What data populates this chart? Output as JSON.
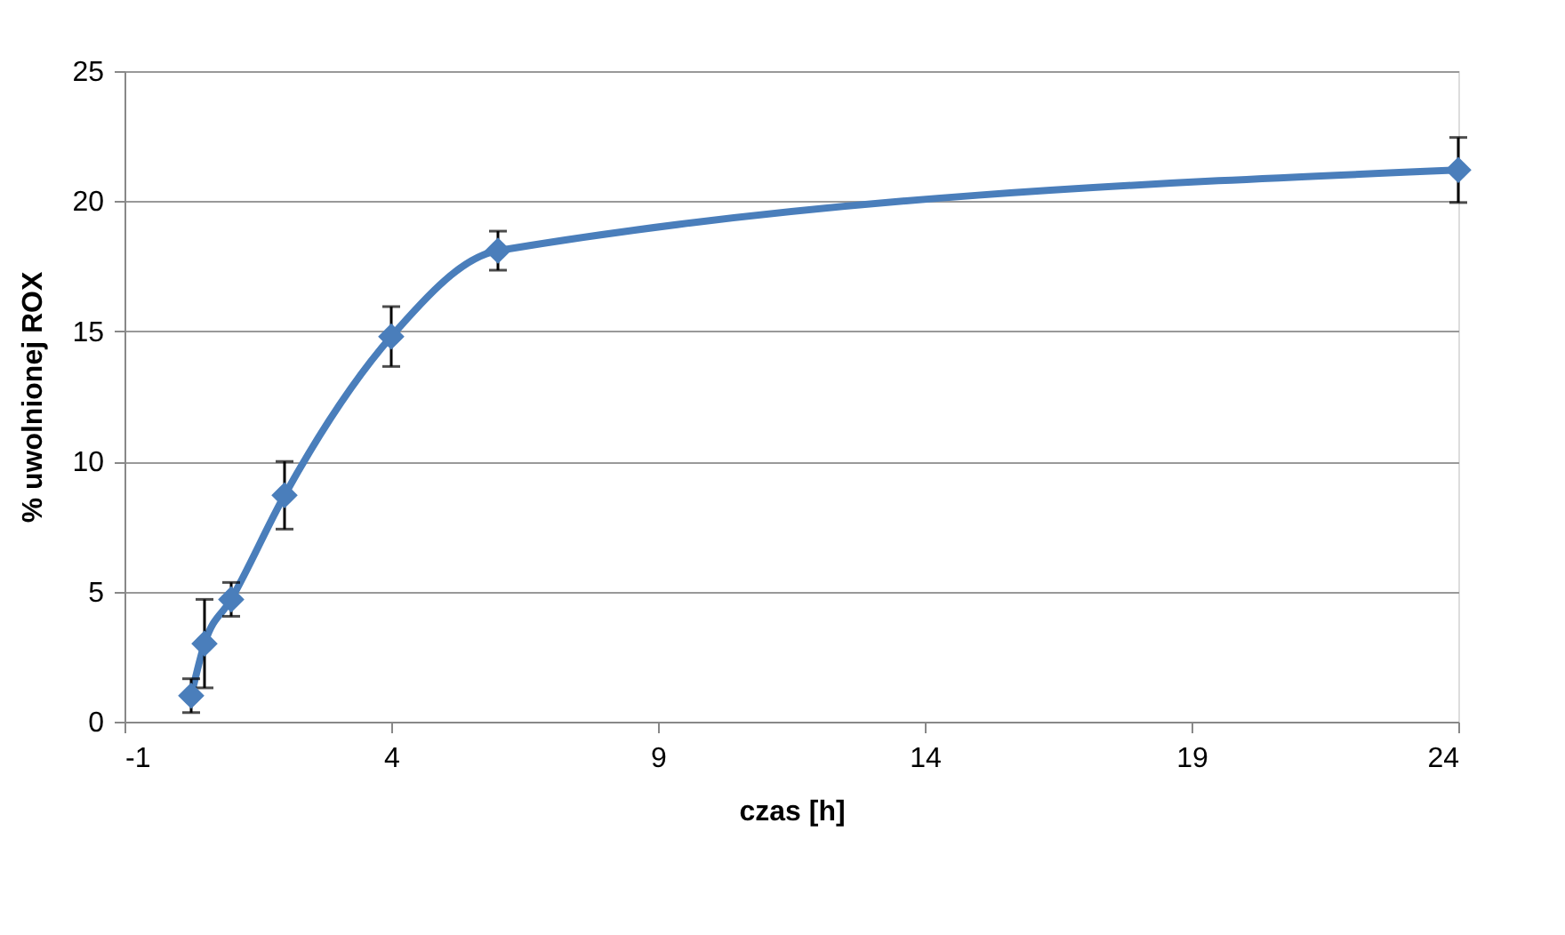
{
  "chart_data": {
    "type": "line",
    "xlabel": "czas [h]",
    "ylabel": "% uwolnionej ROX",
    "x": [
      0.25,
      0.5,
      1,
      2,
      4,
      6,
      24
    ],
    "series": [
      {
        "color": "#4a7ebb",
        "values": [
          1.0,
          3.0,
          4.7,
          8.7,
          14.8,
          18.1,
          21.2
        ],
        "errors": [
          0.65,
          1.7,
          0.65,
          1.3,
          1.15,
          0.75,
          1.25
        ]
      }
    ],
    "xlim": [
      -1,
      24
    ],
    "xticks": [
      -1,
      4,
      9,
      14,
      19,
      24
    ],
    "ylim": [
      0,
      25
    ],
    "yticks": [
      0,
      5,
      10,
      15,
      20,
      25
    ],
    "grid": "y",
    "marker": "diamond",
    "line_style": "solid"
  }
}
